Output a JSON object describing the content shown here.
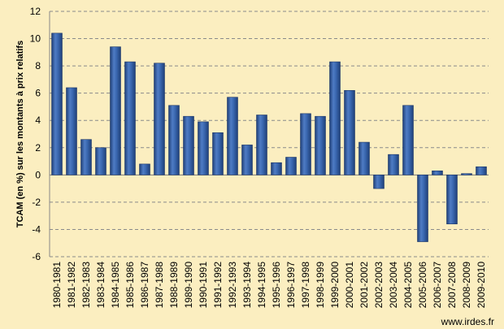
{
  "chart_data": {
    "type": "bar",
    "ylabel": "TCAM (en %) sur les montants à prix relatifs",
    "ylim": [
      -6,
      12
    ],
    "yticks": [
      12,
      10,
      8,
      6,
      4,
      2,
      0,
      -2,
      -4,
      -6
    ],
    "grid": true,
    "legend": "none",
    "bar_color": "#3a68b0",
    "categories": [
      "1980-1981",
      "1981-1982",
      "1982-1983",
      "1983-1984",
      "1984-1985",
      "1985-1986",
      "1986-1987",
      "1987-1988",
      "1988-1989",
      "1989-1990",
      "1990-1991",
      "1991-1992",
      "1992-1993",
      "1993-1994",
      "1994-1995",
      "1995-1996",
      "1996-1997",
      "1997-1998",
      "1998-1999",
      "1999-2000",
      "2000-2001",
      "2001-2002",
      "2002-2003",
      "2003-2004",
      "2004-2005",
      "2005-2006",
      "2006-2007",
      "2007-2008",
      "2008-2009",
      "2009-2010"
    ],
    "values": [
      10.4,
      6.4,
      2.6,
      2.0,
      9.4,
      8.3,
      0.8,
      8.2,
      5.1,
      4.3,
      3.9,
      3.1,
      5.7,
      2.2,
      4.4,
      0.9,
      1.3,
      4.5,
      4.3,
      8.3,
      6.2,
      2.4,
      -1.0,
      1.5,
      5.1,
      -4.9,
      0.3,
      -3.6,
      0.1,
      0.6
    ]
  },
  "credit": "www.irdes.fr"
}
